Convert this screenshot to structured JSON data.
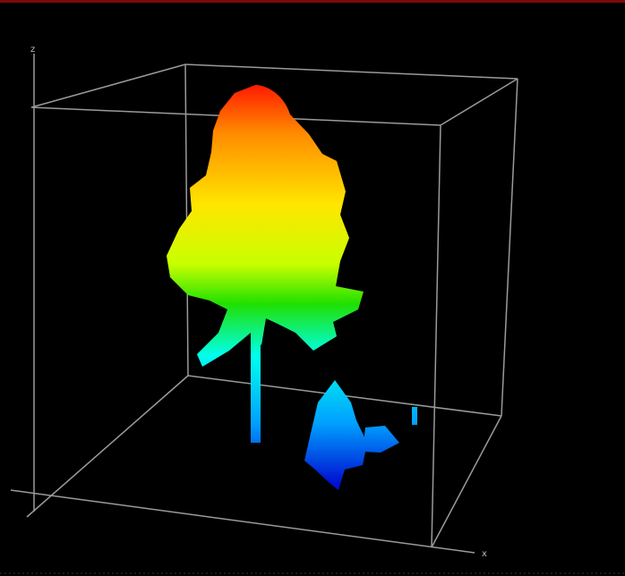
{
  "axes": {
    "vertical": "z",
    "horizontal": "x"
  }
}
